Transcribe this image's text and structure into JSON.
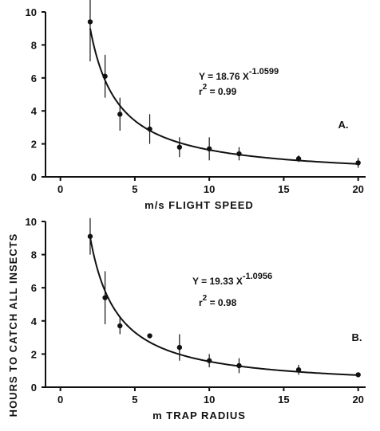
{
  "figure": {
    "ylabel": "HOURS TO CATCH ALL INSECTS"
  },
  "chart_data": [
    {
      "type": "scatter",
      "panel_label": "A.",
      "xlabel": "m/s  FLIGHT  SPEED",
      "xlim": [
        -1,
        20.5
      ],
      "ylim": [
        0,
        10
      ],
      "xticks": [
        0,
        5,
        10,
        15,
        20
      ],
      "yticks": [
        0,
        2,
        4,
        6,
        8,
        10
      ],
      "equation": {
        "prefix": "Y = 18.76 X",
        "exponent": "-1.0599",
        "r2_prefix": "r",
        "r2_power": "2",
        "r2_value": " = 0.99"
      },
      "fit": {
        "a": 18.76,
        "b": -1.0599,
        "x_range": [
          2,
          20
        ]
      },
      "points": [
        {
          "x": 2,
          "y": 9.4,
          "err": 2.4
        },
        {
          "x": 3,
          "y": 6.1,
          "err": 1.3
        },
        {
          "x": 4,
          "y": 3.8,
          "err": 1.0
        },
        {
          "x": 6,
          "y": 2.9,
          "err": 0.9
        },
        {
          "x": 8,
          "y": 1.8,
          "err": 0.6
        },
        {
          "x": 10,
          "y": 1.7,
          "err": 0.7
        },
        {
          "x": 12,
          "y": 1.4,
          "err": 0.4
        },
        {
          "x": 16,
          "y": 1.1,
          "err": 0.2
        },
        {
          "x": 20,
          "y": 0.85,
          "err": 0.3
        }
      ]
    },
    {
      "type": "scatter",
      "panel_label": "B.",
      "xlabel": "m  TRAP  RADIUS",
      "xlim": [
        -1,
        20.5
      ],
      "ylim": [
        0,
        10
      ],
      "xticks": [
        0,
        5,
        10,
        15,
        20
      ],
      "yticks": [
        0,
        2,
        4,
        6,
        8,
        10
      ],
      "equation": {
        "prefix": "Y = 19.33 X",
        "exponent": "-1.0956",
        "r2_prefix": "r",
        "r2_power": "2",
        "r2_value": " = 0.98"
      },
      "fit": {
        "a": 19.33,
        "b": -1.0956,
        "x_range": [
          2,
          20
        ]
      },
      "points": [
        {
          "x": 2,
          "y": 9.1,
          "err": 1.1
        },
        {
          "x": 3,
          "y": 5.4,
          "err": 1.6
        },
        {
          "x": 4,
          "y": 3.7,
          "err": 0.5
        },
        {
          "x": 6,
          "y": 3.1,
          "err": 0
        },
        {
          "x": 8,
          "y": 2.4,
          "err": 0.8
        },
        {
          "x": 10,
          "y": 1.6,
          "err": 0.4
        },
        {
          "x": 12,
          "y": 1.3,
          "err": 0.45
        },
        {
          "x": 16,
          "y": 1.05,
          "err": 0.3
        },
        {
          "x": 20,
          "y": 0.75,
          "err": 0
        }
      ]
    }
  ]
}
